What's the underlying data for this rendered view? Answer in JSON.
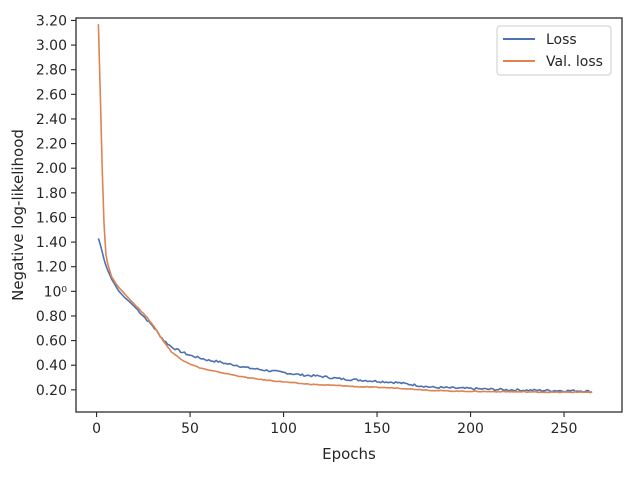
{
  "chart_data": {
    "type": "line",
    "xlabel": "Epochs",
    "ylabel": "Negative log-likelihood",
    "xlim": [
      -11,
      281
    ],
    "ylim": [
      0.02,
      3.22
    ],
    "x_ticks": [
      0,
      50,
      100,
      150,
      200,
      250
    ],
    "y_ticks": [
      {
        "v": 0.2,
        "label": "0.20"
      },
      {
        "v": 0.4,
        "label": "0.40"
      },
      {
        "v": 0.6,
        "label": "0.60"
      },
      {
        "v": 0.8,
        "label": "0.80"
      },
      {
        "v": 1.0,
        "label": "10⁰"
      },
      {
        "v": 1.2,
        "label": "1.20"
      },
      {
        "v": 1.4,
        "label": "1.40"
      },
      {
        "v": 1.6,
        "label": "1.60"
      },
      {
        "v": 1.8,
        "label": "1.80"
      },
      {
        "v": 2.0,
        "label": "2.00"
      },
      {
        "v": 2.2,
        "label": "2.20"
      },
      {
        "v": 2.4,
        "label": "2.40"
      },
      {
        "v": 2.6,
        "label": "2.60"
      },
      {
        "v": 2.8,
        "label": "2.80"
      },
      {
        "v": 3.0,
        "label": "3.00"
      },
      {
        "v": 3.2,
        "label": "3.20"
      }
    ],
    "grid": false,
    "legend_position": "top-right",
    "series": [
      {
        "name": "Loss",
        "color": "#4c72b0",
        "x": [
          1,
          2,
          3,
          4,
          5,
          6,
          8,
          10,
          12,
          15,
          18,
          20,
          22,
          25,
          28,
          30,
          33,
          36,
          40,
          45,
          50,
          55,
          60,
          65,
          70,
          75,
          80,
          90,
          100,
          110,
          120,
          130,
          140,
          150,
          160,
          170,
          180,
          190,
          200,
          210,
          220,
          230,
          240,
          250,
          260,
          265
        ],
        "y": [
          1.43,
          1.38,
          1.32,
          1.26,
          1.21,
          1.17,
          1.1,
          1.05,
          1.0,
          0.95,
          0.91,
          0.88,
          0.85,
          0.8,
          0.75,
          0.72,
          0.66,
          0.6,
          0.55,
          0.51,
          0.48,
          0.46,
          0.44,
          0.43,
          0.41,
          0.4,
          0.38,
          0.36,
          0.34,
          0.32,
          0.31,
          0.29,
          0.28,
          0.27,
          0.26,
          0.24,
          0.22,
          0.215,
          0.21,
          0.205,
          0.2,
          0.197,
          0.195,
          0.193,
          0.192,
          0.185
        ]
      },
      {
        "name": "Val. loss",
        "color": "#dd8452",
        "x": [
          1,
          2,
          3,
          4,
          5,
          6,
          8,
          10,
          12,
          15,
          18,
          20,
          22,
          25,
          28,
          30,
          33,
          36,
          40,
          45,
          50,
          55,
          60,
          65,
          70,
          75,
          80,
          90,
          100,
          110,
          120,
          130,
          140,
          150,
          160,
          170,
          180,
          190,
          200,
          210,
          220,
          230,
          240,
          250,
          260,
          265
        ],
        "y": [
          3.17,
          2.6,
          2.0,
          1.55,
          1.3,
          1.22,
          1.12,
          1.07,
          1.03,
          0.98,
          0.93,
          0.9,
          0.87,
          0.82,
          0.77,
          0.73,
          0.66,
          0.59,
          0.51,
          0.45,
          0.41,
          0.38,
          0.36,
          0.345,
          0.33,
          0.315,
          0.3,
          0.28,
          0.265,
          0.25,
          0.24,
          0.235,
          0.225,
          0.22,
          0.215,
          0.205,
          0.195,
          0.19,
          0.188,
          0.186,
          0.185,
          0.183,
          0.181,
          0.18,
          0.182,
          0.18
        ]
      }
    ]
  }
}
